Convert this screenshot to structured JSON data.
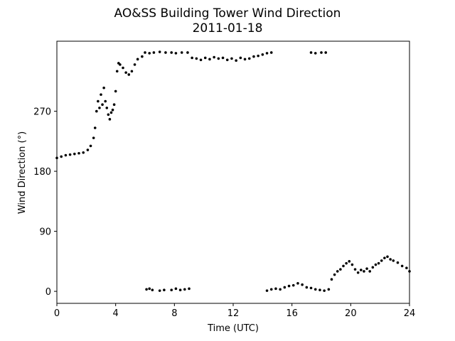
{
  "chart_data": {
    "type": "scatter",
    "title": "AO&SS Building Tower Wind Direction",
    "subtitle": "2011-01-18",
    "x_label": "Time (UTC)",
    "y_label": "Wind Direction (°)",
    "color": "#000000",
    "xlim": [
      0,
      24
    ],
    "xticks": [
      0,
      4,
      8,
      12,
      16,
      20,
      24
    ],
    "ylim": [
      -18,
      375
    ],
    "yticks": [
      0,
      90,
      180,
      270
    ],
    "x": [
      0,
      0.3,
      0.6,
      0.9,
      1.2,
      1.5,
      1.8,
      2.1,
      2.3,
      2.5,
      2.6,
      2.7,
      2.8,
      2.9,
      3.0,
      3.1,
      3.2,
      3.3,
      3.4,
      3.5,
      3.6,
      3.7,
      3.8,
      3.9,
      4.0,
      4.1,
      4.2,
      4.3,
      4.5,
      4.7,
      4.9,
      5.1,
      5.3,
      5.5,
      5.8,
      6.0,
      6.3,
      6.6,
      7.0,
      7.4,
      7.8,
      8.1,
      8.5,
      8.9,
      9.2,
      9.5,
      9.8,
      10.1,
      10.4,
      10.7,
      11.0,
      11.3,
      11.6,
      11.9,
      12.2,
      12.5,
      12.8,
      13.1,
      13.4,
      13.7,
      14.0,
      14.3,
      14.6,
      17.3,
      17.6,
      18.0,
      18.3,
      6.1,
      6.3,
      6.5,
      7.0,
      7.3,
      7.8,
      8.1,
      8.4,
      8.7,
      9.0,
      14.3,
      14.6,
      14.9,
      15.2,
      15.5,
      15.8,
      16.1,
      16.4,
      16.7,
      17.0,
      17.3,
      17.6,
      17.9,
      18.2,
      18.5,
      18.7,
      18.9,
      19.1,
      19.3,
      19.5,
      19.7,
      19.9,
      20.1,
      20.3,
      20.5,
      20.7,
      20.9,
      21.1,
      21.3,
      21.5,
      21.7,
      21.9,
      22.1,
      22.3,
      22.5,
      22.7,
      22.9,
      23.2,
      23.5,
      23.8,
      24.0
    ],
    "values": [
      200,
      202,
      204,
      205,
      206,
      207,
      208,
      212,
      218,
      230,
      245,
      270,
      285,
      275,
      295,
      280,
      305,
      285,
      275,
      265,
      258,
      268,
      272,
      280,
      300,
      330,
      342,
      340,
      335,
      328,
      325,
      330,
      340,
      348,
      352,
      358,
      357,
      358,
      359,
      358,
      358,
      357,
      358,
      358,
      350,
      349,
      347,
      350,
      348,
      351,
      349,
      350,
      347,
      349,
      346,
      350,
      348,
      349,
      352,
      353,
      355,
      357,
      358,
      358,
      357,
      358,
      358,
      3,
      4,
      2,
      1,
      2,
      2,
      4,
      2,
      3,
      4,
      1,
      3,
      4,
      3,
      6,
      8,
      9,
      12,
      10,
      6,
      5,
      3,
      2,
      1,
      3,
      18,
      25,
      30,
      33,
      38,
      42,
      45,
      40,
      33,
      28,
      32,
      30,
      34,
      30,
      36,
      40,
      42,
      46,
      50,
      52,
      48,
      46,
      43,
      38,
      35,
      30
    ]
  }
}
